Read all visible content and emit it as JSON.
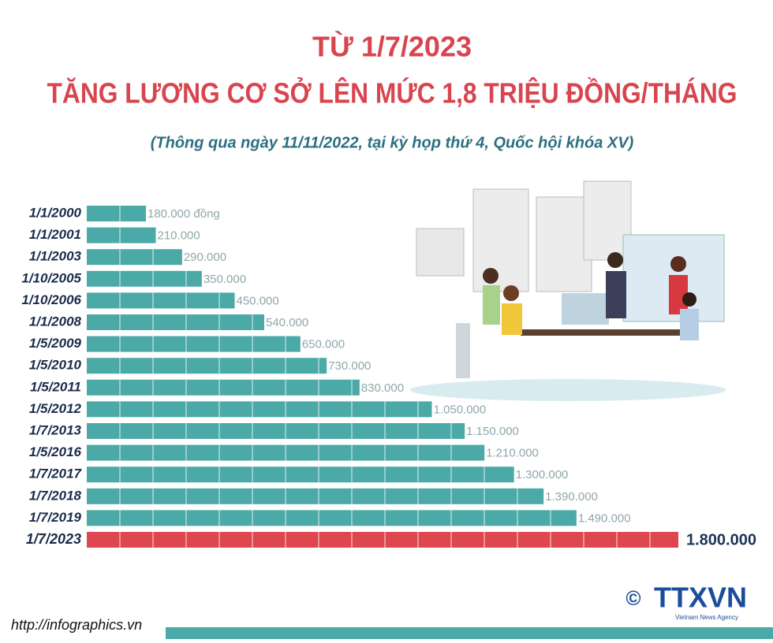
{
  "chart_data": {
    "type": "bar",
    "orientation": "horizontal",
    "title": "TỪ 1/7/2023",
    "subtitle": "TĂNG LƯƠNG CƠ SỞ LÊN MỨC 1,8 TRIỆU ĐỒNG/THÁNG",
    "note": "(Thông qua ngày 11/11/2022, tại kỳ họp thứ 4, Quốc hội khóa XV)",
    "categories": [
      "1/1/2000",
      "1/1/2001",
      "1/1/2003",
      "1/10/2005",
      "1/10/2006",
      "1/1/2008",
      "1/5/2009",
      "1/5/2010",
      "1/5/2011",
      "1/5/2012",
      "1/7/2013",
      "1/5/2016",
      "1/7/2017",
      "1/7/2018",
      "1/7/2019",
      "1/7/2023"
    ],
    "values": [
      180000,
      210000,
      290000,
      350000,
      450000,
      540000,
      650000,
      730000,
      830000,
      1050000,
      1150000,
      1210000,
      1300000,
      1390000,
      1490000,
      1800000
    ],
    "value_labels": [
      "180.000 đồng",
      "210.000",
      "290.000",
      "350.000",
      "450.000",
      "540.000",
      "650.000",
      "730.000",
      "830.000",
      "1.050.000",
      "1.150.000",
      "1.210.000",
      "1.300.000",
      "1.390.000",
      "1.490.000",
      "1.800.000"
    ],
    "colors": [
      "#4ba9a7",
      "#4ba9a7",
      "#4ba9a7",
      "#4ba9a7",
      "#4ba9a7",
      "#4ba9a7",
      "#4ba9a7",
      "#4ba9a7",
      "#4ba9a7",
      "#4ba9a7",
      "#4ba9a7",
      "#4ba9a7",
      "#4ba9a7",
      "#4ba9a7",
      "#4ba9a7",
      "#de4650"
    ]
  },
  "footer": {
    "url": "http://infographics.vn",
    "copyright": "©",
    "logo": "TTXVN",
    "agency": "Vietnam News Agency"
  }
}
